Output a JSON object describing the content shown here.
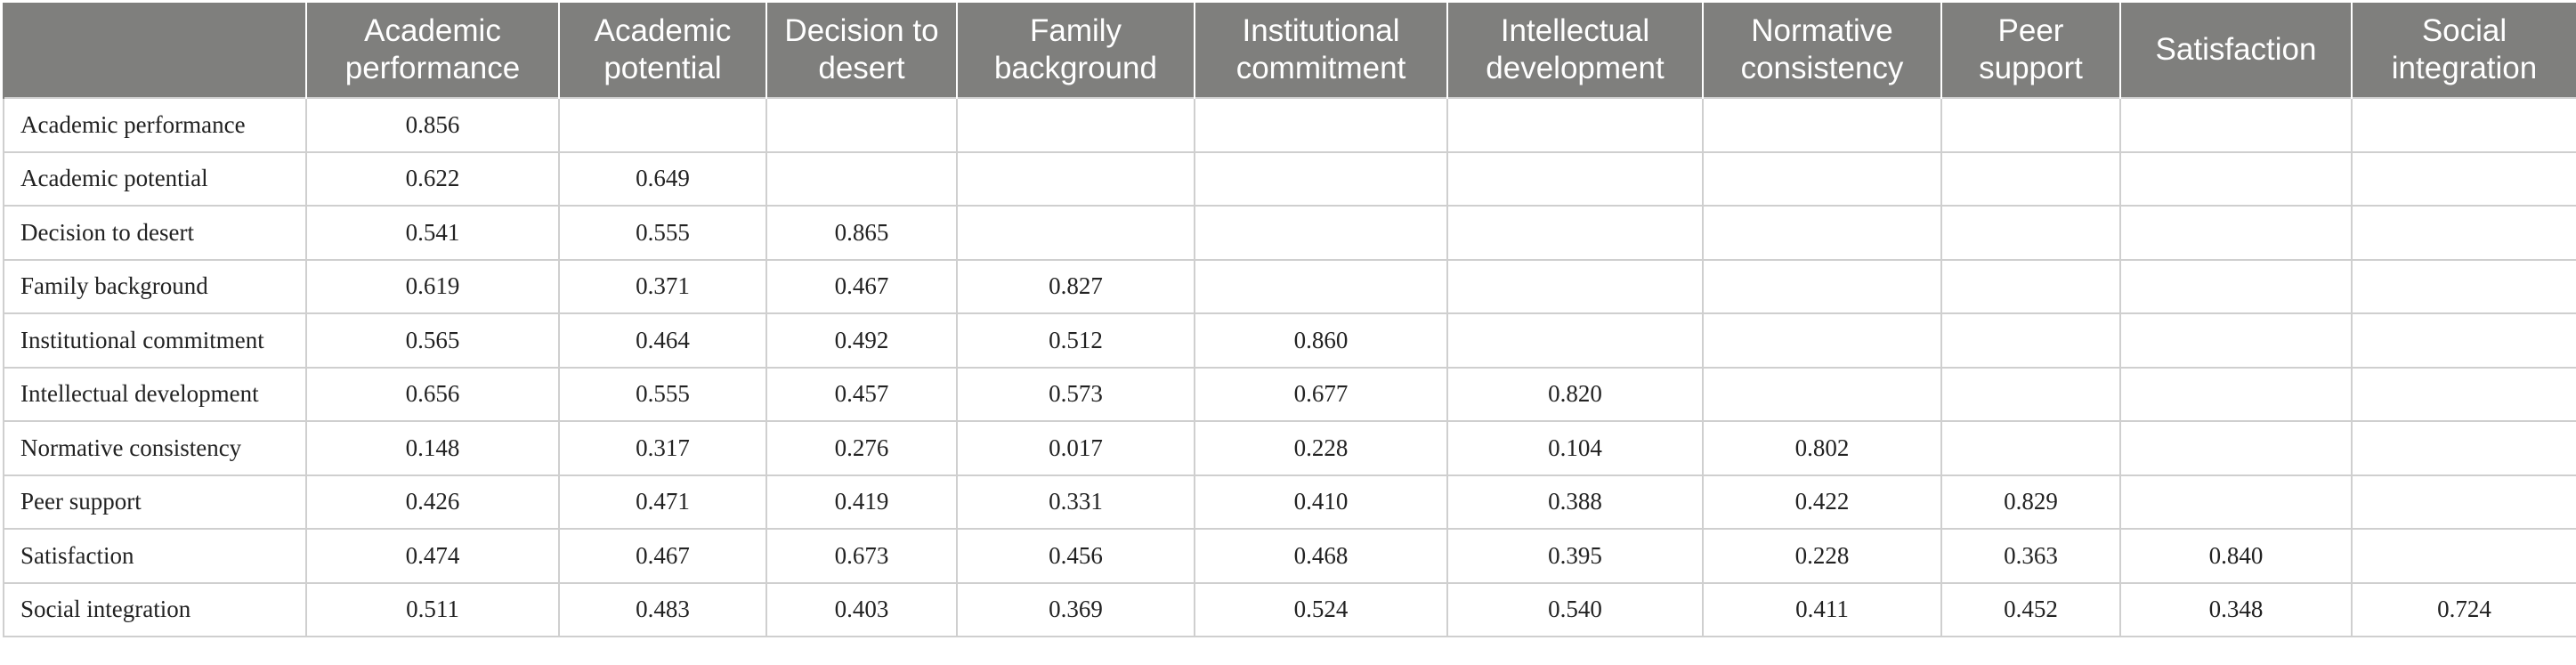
{
  "table": {
    "columns": [
      "",
      "Academic performance",
      "Academic potential",
      "Decision to desert",
      "Family background",
      "Institutional commitment",
      "Intellectual development",
      "Normative consistency",
      "Peer support",
      "Satisfaction",
      "Social integration"
    ],
    "rows": [
      {
        "label": "Academic performance",
        "values": [
          "0.856",
          "",
          "",
          "",
          "",
          "",
          "",
          "",
          "",
          ""
        ]
      },
      {
        "label": "Academic potential",
        "values": [
          "0.622",
          "0.649",
          "",
          "",
          "",
          "",
          "",
          "",
          "",
          ""
        ]
      },
      {
        "label": "Decision to desert",
        "values": [
          "0.541",
          "0.555",
          "0.865",
          "",
          "",
          "",
          "",
          "",
          "",
          ""
        ]
      },
      {
        "label": "Family background",
        "values": [
          "0.619",
          "0.371",
          "0.467",
          "0.827",
          "",
          "",
          "",
          "",
          "",
          ""
        ]
      },
      {
        "label": "Institutional commitment",
        "values": [
          "0.565",
          "0.464",
          "0.492",
          "0.512",
          "0.860",
          "",
          "",
          "",
          "",
          ""
        ]
      },
      {
        "label": "Intellectual development",
        "values": [
          "0.656",
          "0.555",
          "0.457",
          "0.573",
          "0.677",
          "0.820",
          "",
          "",
          "",
          ""
        ]
      },
      {
        "label": "Normative consistency",
        "values": [
          "0.148",
          "0.317",
          "0.276",
          "0.017",
          "0.228",
          "0.104",
          "0.802",
          "",
          "",
          ""
        ]
      },
      {
        "label": "Peer support",
        "values": [
          "0.426",
          "0.471",
          "0.419",
          "0.331",
          "0.410",
          "0.388",
          "0.422",
          "0.829",
          "",
          ""
        ]
      },
      {
        "label": "Satisfaction",
        "values": [
          "0.474",
          "0.467",
          "0.673",
          "0.456",
          "0.468",
          "0.395",
          "0.228",
          "0.363",
          "0.840",
          ""
        ]
      },
      {
        "label": "Social integration",
        "values": [
          "0.511",
          "0.483",
          "0.403",
          "0.369",
          "0.524",
          "0.540",
          "0.411",
          "0.452",
          "0.348",
          "0.724"
        ]
      }
    ]
  },
  "colors": {
    "header_bg": "#7f7f7d",
    "header_text": "#ffffff",
    "grid": "#cfcfcf",
    "body_text": "#222222"
  }
}
